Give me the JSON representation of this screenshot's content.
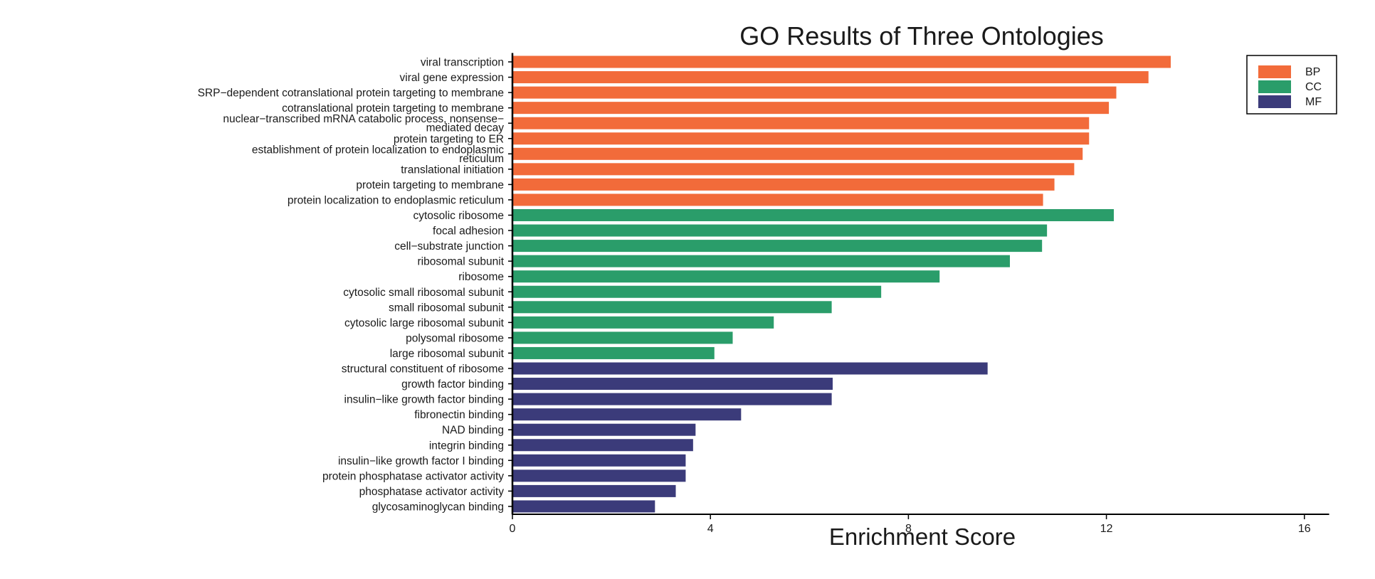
{
  "chart_data": {
    "type": "bar",
    "orientation": "horizontal",
    "title": "GO Results of Three Ontologies",
    "xlabel": "Enrichment Score",
    "ylabel": "",
    "xlim": [
      0,
      16.5
    ],
    "xticks": [
      0,
      4,
      8,
      12,
      16
    ],
    "grid": false,
    "legend_position": "top-right",
    "legend": [
      {
        "name": "BP",
        "color": "#F26B3A"
      },
      {
        "name": "CC",
        "color": "#2A9D6A"
      },
      {
        "name": "MF",
        "color": "#3B3B7A"
      }
    ],
    "categories": [
      "viral transcription",
      "viral gene expression",
      "SRP−dependent cotranslational protein targeting to membrane",
      "cotranslational protein targeting to membrane",
      "nuclear−transcribed mRNA catabolic process, nonsense−\nmediated decay",
      "protein targeting to ER",
      "establishment of protein localization to endoplasmic\nreticulum",
      "translational initiation",
      "protein targeting to membrane",
      "protein localization to endoplasmic reticulum",
      "cytosolic ribosome",
      "focal adhesion",
      "cell−substrate junction",
      "ribosomal subunit",
      "ribosome",
      "cytosolic small ribosomal subunit",
      "small ribosomal subunit",
      "cytosolic large ribosomal subunit",
      "polysomal ribosome",
      "large ribosomal subunit",
      "structural constituent of ribosome",
      "growth factor binding",
      "insulin−like growth factor binding",
      "fibronectin binding",
      "NAD binding",
      "integrin binding",
      "insulin−like growth factor I binding",
      "protein phosphatase activator activity",
      "phosphatase activator activity",
      "glycosaminoglycan binding"
    ],
    "values": [
      13.3,
      12.85,
      12.2,
      12.05,
      11.65,
      11.65,
      11.52,
      11.35,
      10.95,
      10.72,
      12.15,
      10.8,
      10.7,
      10.05,
      8.63,
      7.45,
      6.45,
      5.28,
      4.45,
      4.08,
      9.6,
      6.47,
      6.45,
      4.62,
      3.7,
      3.65,
      3.5,
      3.5,
      3.3,
      2.88
    ],
    "groups": [
      "BP",
      "BP",
      "BP",
      "BP",
      "BP",
      "BP",
      "BP",
      "BP",
      "BP",
      "BP",
      "CC",
      "CC",
      "CC",
      "CC",
      "CC",
      "CC",
      "CC",
      "CC",
      "CC",
      "CC",
      "MF",
      "MF",
      "MF",
      "MF",
      "MF",
      "MF",
      "MF",
      "MF",
      "MF",
      "MF"
    ]
  }
}
